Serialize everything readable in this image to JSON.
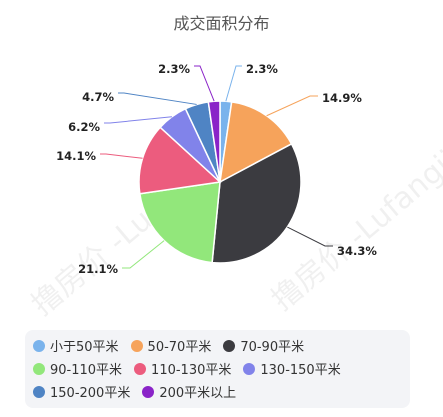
{
  "chart_data": {
    "type": "pie",
    "title": "成交面积分布",
    "categories": [
      "小于50平米",
      "50-70平米",
      "70-90平米",
      "90-110平米",
      "110-130平米",
      "130-150平米",
      "150-200平米",
      "200平米以上"
    ],
    "values": [
      2.3,
      14.9,
      34.3,
      21.1,
      14.1,
      6.2,
      4.7,
      2.3
    ],
    "value_labels": [
      "2.3%",
      "14.9%",
      "34.3%",
      "21.1%",
      "14.1%",
      "6.2%",
      "4.7%",
      "2.3%"
    ],
    "colors": [
      "#7ab3ec",
      "#f6a35b",
      "#3b3b40",
      "#92e77b",
      "#ec5c7e",
      "#8183ea",
      "#4f84c4",
      "#8a23c8"
    ],
    "legend_position": "bottom"
  },
  "watermark": "撸房价 -Lufangjia"
}
